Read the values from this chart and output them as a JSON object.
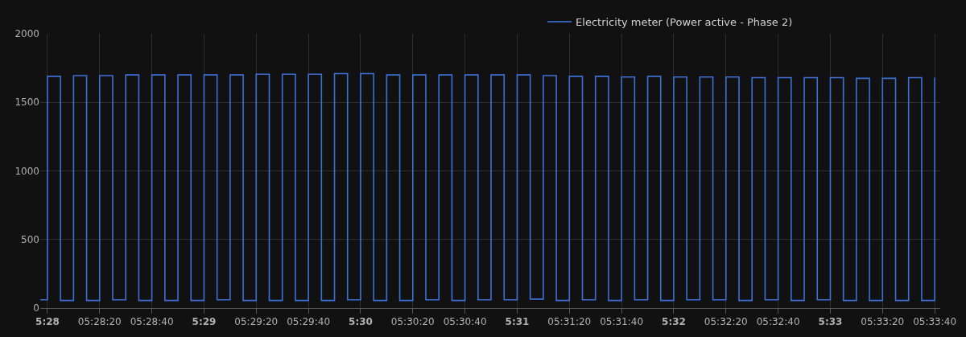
{
  "chart_data": {
    "type": "step",
    "legend": "top",
    "grid": true,
    "marker": "none",
    "xlim": [
      5.4659,
      5.5617
    ],
    "ylim": [
      0,
      2000
    ],
    "yticks": [
      0,
      500,
      1000,
      1500,
      2000
    ],
    "xticks": [
      {
        "value": 5.466667,
        "label": "5:28"
      },
      {
        "value": 5.472222,
        "label": "05:28:20"
      },
      {
        "value": 5.477778,
        "label": "05:28:40"
      },
      {
        "value": 5.483333,
        "label": "5:29"
      },
      {
        "value": 5.488889,
        "label": "05:29:20"
      },
      {
        "value": 5.494444,
        "label": "05:29:40"
      },
      {
        "value": 5.5,
        "label": "5:30"
      },
      {
        "value": 5.505556,
        "label": "05:30:20"
      },
      {
        "value": 5.511111,
        "label": "05:30:40"
      },
      {
        "value": 5.516667,
        "label": "5:31"
      },
      {
        "value": 5.522222,
        "label": "05:31:20"
      },
      {
        "value": 5.527778,
        "label": "05:31:40"
      },
      {
        "value": 5.533333,
        "label": "5:32"
      },
      {
        "value": 5.538889,
        "label": "05:32:20"
      },
      {
        "value": 5.544444,
        "label": "05:32:40"
      },
      {
        "value": 5.55,
        "label": "5:33"
      },
      {
        "value": 5.555556,
        "label": "05:33:20"
      },
      {
        "value": 5.561111,
        "label": "05:33:40"
      }
    ],
    "series": [
      {
        "name": "Electricity meter (Power active - Phase 2)",
        "color": "#3d6fd6",
        "x": [
          5.465917,
          5.466667,
          5.468056,
          5.469444,
          5.470833,
          5.472222,
          5.473611,
          5.475,
          5.476389,
          5.477778,
          5.479167,
          5.480556,
          5.481944,
          5.483333,
          5.484722,
          5.486111,
          5.4875,
          5.488889,
          5.490278,
          5.491667,
          5.493056,
          5.494444,
          5.495833,
          5.497222,
          5.498611,
          5.5,
          5.501389,
          5.502778,
          5.504167,
          5.505556,
          5.506944,
          5.508333,
          5.509722,
          5.511111,
          5.5125,
          5.513889,
          5.515278,
          5.516667,
          5.518056,
          5.519444,
          5.520833,
          5.522222,
          5.523611,
          5.525,
          5.526389,
          5.527778,
          5.529167,
          5.530556,
          5.531944,
          5.533333,
          5.534722,
          5.536111,
          5.5375,
          5.538889,
          5.540278,
          5.541667,
          5.543056,
          5.544444,
          5.545833,
          5.547222,
          5.548611,
          5.55,
          5.551389,
          5.552778,
          5.554167,
          5.555556,
          5.556944,
          5.558333,
          5.559722,
          5.561111
        ],
        "values": [
          60,
          1690,
          55,
          1695,
          55,
          1695,
          60,
          1700,
          55,
          1700,
          55,
          1700,
          55,
          1700,
          60,
          1700,
          55,
          1705,
          55,
          1705,
          55,
          1705,
          55,
          1710,
          60,
          1710,
          55,
          1700,
          55,
          1700,
          60,
          1700,
          55,
          1700,
          60,
          1700,
          60,
          1700,
          65,
          1695,
          55,
          1690,
          60,
          1690,
          55,
          1685,
          60,
          1690,
          55,
          1685,
          60,
          1685,
          60,
          1685,
          55,
          1680,
          60,
          1680,
          55,
          1680,
          60,
          1680,
          55,
          1675,
          55,
          1675,
          55,
          1680,
          55,
          1680
        ]
      }
    ]
  }
}
